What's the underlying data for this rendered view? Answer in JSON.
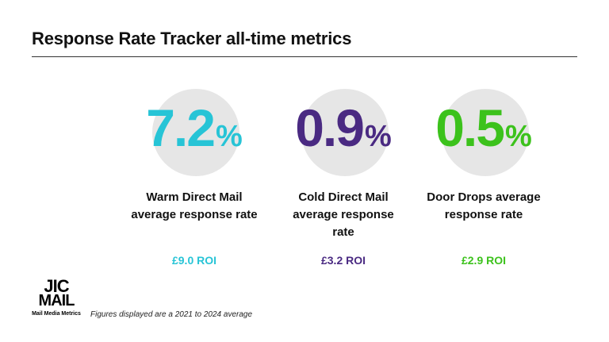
{
  "title": "Response Rate Tracker all-time metrics",
  "metrics": [
    {
      "value": "7.2",
      "unit": "%",
      "label": "Warm Direct Mail average response rate",
      "roi": "£9.0 ROI",
      "color": "#27c4d6"
    },
    {
      "value": "0.9",
      "unit": "%",
      "label": "Cold Direct Mail average response rate",
      "roi": "£3.2 ROI",
      "color": "#4a2a82"
    },
    {
      "value": "0.5",
      "unit": "%",
      "label": "Door Drops average response rate",
      "roi": "£2.9 ROI",
      "color": "#3cc21c"
    }
  ],
  "logo": {
    "line1": "JIC",
    "line2": "MAIL",
    "tagline": "Mail Media Metrics"
  },
  "footnote": "Figures displayed are a 2021 to 2024 average"
}
